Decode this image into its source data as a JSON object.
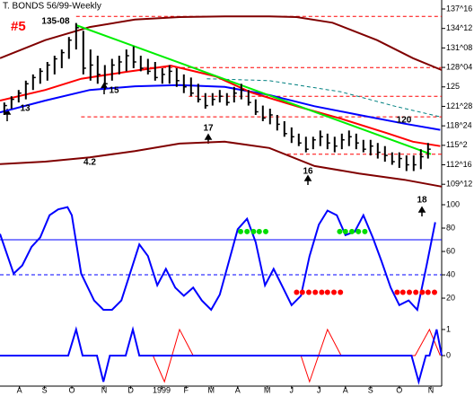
{
  "chart_data": [
    {
      "type": "hlc",
      "title": "T. BONDS 56/99-Weekly",
      "badge": "#5",
      "annotations": [
        "135-08",
        "13",
        "15",
        "17",
        "16",
        "18",
        "120",
        "4.2"
      ],
      "xlim": [
        -0.6,
        60.9
      ],
      "ylim": [
        107.82,
        138.94
      ],
      "yticks": [
        {
          "value": 137.5,
          "label": "137^16"
        },
        {
          "value": 134.375,
          "label": "134^12"
        },
        {
          "value": 131.25,
          "label": "131^08"
        },
        {
          "value": 128.125,
          "label": "128^04"
        },
        125,
        {
          "value": 121.875,
          "label": "121^28"
        },
        {
          "value": 118.75,
          "label": "118^24"
        },
        {
          "value": 115.625,
          "label": "115^2"
        },
        {
          "value": 112.5,
          "label": "112^16"
        },
        {
          "value": 109.375,
          "label": "109^12"
        }
      ],
      "bar_color": "#000000",
      "x": [
        0,
        1,
        2,
        3,
        4,
        5,
        6,
        7,
        8,
        9,
        10,
        11,
        12,
        13,
        14,
        15,
        16,
        17,
        18,
        19,
        20,
        21,
        22,
        23,
        24,
        25,
        26,
        27,
        28,
        29,
        30,
        31,
        32,
        33,
        34,
        35,
        36,
        37,
        38,
        39,
        40,
        41,
        42,
        43,
        44,
        45,
        46,
        47,
        48,
        49,
        50,
        51,
        52,
        53,
        54,
        55,
        56,
        57,
        58,
        59
      ],
      "high": [
        122.5,
        123.5,
        124.5,
        126,
        127,
        128,
        129,
        130,
        131,
        133,
        135.25,
        134,
        131,
        130,
        128.5,
        129.5,
        130,
        131,
        131.5,
        130,
        129.5,
        129,
        128,
        128.5,
        128,
        127,
        126.5,
        125.5,
        124,
        124,
        124.5,
        124,
        125,
        125.5,
        124.5,
        123,
        122,
        121.5,
        120.5,
        119.5,
        118.5,
        117.5,
        117,
        117,
        118,
        117.5,
        117,
        117.5,
        118,
        117.5,
        116.5,
        116.5,
        116,
        115.5,
        114.5,
        114.5,
        114,
        114,
        115,
        116
      ],
      "low": [
        120.5,
        121.5,
        122.5,
        123,
        124.5,
        125.5,
        126,
        127,
        128,
        129.5,
        131,
        127,
        126,
        125.5,
        124.5,
        126,
        127,
        127.5,
        128,
        127.5,
        127,
        126,
        125.5,
        125.5,
        125,
        124,
        123.5,
        122.5,
        121.5,
        122,
        122.5,
        122,
        122.5,
        123,
        122,
        120.5,
        119.5,
        119,
        118,
        117,
        116,
        115.5,
        114.5,
        115,
        115.5,
        115,
        114.5,
        115,
        115.5,
        115,
        114.5,
        114,
        113.5,
        113,
        112.5,
        112,
        111.5,
        111.5,
        111.8,
        113.5
      ],
      "close": [
        122,
        123,
        124,
        125.5,
        126.5,
        127.5,
        128.5,
        129.5,
        130.5,
        132.5,
        134.5,
        128,
        128.5,
        127,
        125.5,
        128.5,
        129,
        130,
        129,
        128,
        127.5,
        126.5,
        127,
        127.5,
        126,
        125,
        124,
        123,
        122,
        123,
        123.5,
        122.5,
        124,
        124.5,
        122.5,
        121,
        120,
        120.5,
        119,
        117.5,
        117,
        116,
        115,
        116.5,
        117,
        116,
        115.5,
        116.5,
        117,
        116,
        115,
        115.5,
        114.5,
        114,
        113,
        113.5,
        112.5,
        112.5,
        113.8,
        115
      ],
      "series": [
        {
          "color": "#ff0000",
          "dash": true,
          "x": [
            10,
            60.9
          ],
          "values": [
            136.3,
            136.3
          ]
        },
        {
          "color": "#ff0000",
          "dash": true,
          "x": [
            19.4,
            60.9
          ],
          "values": [
            128.1,
            128.1
          ]
        },
        {
          "color": "#ff0000",
          "dash": true,
          "x": [
            25.7,
            60.9
          ],
          "values": [
            123.5,
            123.5
          ]
        },
        {
          "color": "#ff0000",
          "dash": true,
          "x": [
            10.7,
            60.9
          ],
          "values": [
            120.2,
            120.2
          ]
        },
        {
          "color": "#ff0000",
          "dash": true,
          "x": [
            39.4,
            60.9
          ],
          "values": [
            114.2,
            114.2
          ]
        },
        {
          "color": "#008080",
          "dash": true,
          "x": [
            28.2,
            36.9,
            46.9,
            54.4,
            60.7
          ],
          "values": [
            126.3,
            126,
            124.2,
            121.9,
            120.2
          ]
        },
        {
          "color": "#800000",
          "thick": true,
          "x": [
            -0.6,
            5.7,
            11.9,
            18.2,
            24.4,
            30.7,
            36.9,
            40.7,
            45.7,
            51.9,
            56.9,
            60.9
          ],
          "values": [
            129.6,
            132.5,
            134.6,
            135.8,
            136.2,
            136.3,
            136.3,
            136.2,
            135.3,
            132.5,
            129.6,
            127.7
          ]
        },
        {
          "color": "#800000",
          "thick": true,
          "x": [
            -0.6,
            5.7,
            11.9,
            18.2,
            24.4,
            30.7,
            36.9,
            43.2,
            49.4,
            55.7,
            60.9
          ],
          "values": [
            112.6,
            113,
            113.7,
            114.7,
            115.9,
            116.2,
            115.2,
            112.3,
            111.1,
            110.1,
            109.0
          ]
        },
        {
          "color": "#0000ff",
          "thick": true,
          "x": [
            -0.6,
            5.7,
            11.9,
            18.2,
            24.4,
            30.7,
            36.9,
            43.2,
            49.4,
            55.7,
            60.7
          ],
          "values": [
            120.9,
            122.8,
            124.5,
            125.1,
            125.3,
            125,
            123.7,
            121.9,
            120.5,
            119.1,
            118.1
          ]
        },
        {
          "color": "#ff0000",
          "thick": true,
          "x": [
            -0.6,
            5.7,
            10.7,
            16.9,
            23.2,
            29.4,
            34.4,
            40.7,
            46.9,
            53.2,
            56.9,
            60.7
          ],
          "values": [
            122.8,
            124.5,
            126.3,
            127.4,
            128.4,
            126.7,
            124.1,
            121.9,
            119.9,
            117.6,
            116.2,
            115.5
          ]
        },
        {
          "color": "#00ee00",
          "thick": true,
          "x": [
            10,
            59.4
          ],
          "values": [
            134.9,
            114.2
          ]
        }
      ]
    },
    {
      "type": "line",
      "xlim": [
        -0.6,
        60.9
      ],
      "ylim": [
        -1.5,
        107.7
      ],
      "yticks": [
        100,
        80,
        60,
        40,
        20
      ],
      "series": [
        {
          "color": "#0000ff",
          "x": [
            -0.6,
            60.9
          ],
          "values": [
            70,
            70
          ]
        },
        {
          "color": "#0000ff",
          "dash": true,
          "x": [
            -0.6,
            60.9
          ],
          "values": [
            40,
            40
          ]
        },
        {
          "color": "#0000ff",
          "thick": true,
          "x": [
            -0.6,
            1.3,
            2.5,
            3.8,
            5,
            6.3,
            7.5,
            8.8,
            9.4,
            10.7,
            12.5,
            13.8,
            15,
            16.3,
            17.5,
            18.8,
            20,
            21.3,
            22.5,
            23.8,
            25,
            26.3,
            27.5,
            28.8,
            30,
            31.3,
            32.5,
            33.8,
            35,
            36.3,
            37.5,
            38.8,
            40,
            41.3,
            42.5,
            43.8,
            45,
            46.3,
            47.5,
            48.8,
            50,
            51.3,
            52.5,
            53.8,
            55,
            56.3,
            57.5,
            58.8,
            60
          ],
          "values": [
            75,
            41,
            48,
            64,
            72,
            91,
            96,
            98,
            91,
            41,
            18,
            10,
            10,
            18,
            41,
            66,
            56,
            31,
            45,
            29,
            22,
            29,
            18,
            10,
            23,
            52,
            79,
            88,
            68,
            31,
            45,
            29,
            14,
            22,
            56,
            83,
            95,
            91,
            74,
            77,
            91,
            72,
            52,
            29,
            14,
            18,
            10,
            48,
            85
          ]
        },
        {
          "type": "scatter",
          "color": "#00dd00",
          "x": [
            32.9,
            33.8,
            34.7,
            35.5,
            36.4,
            46.7,
            47.5,
            48.4,
            49.3,
            50.2
          ],
          "values": [
            77,
            77,
            77,
            77,
            77,
            77,
            77,
            77,
            77,
            77
          ]
        },
        {
          "type": "scatter",
          "color": "#ff0000",
          "x": [
            40.7,
            41.5,
            42.4,
            43.3,
            44.2,
            45,
            45.9,
            46.8,
            54.7,
            55.5,
            56.4,
            57.3,
            58.2,
            59,
            59.9
          ],
          "values": [
            25,
            25,
            25,
            25,
            25,
            25,
            25,
            25,
            25,
            25,
            25,
            25,
            25,
            25,
            25
          ]
        }
      ]
    },
    {
      "type": "line",
      "xlim": [
        -0.6,
        60.9
      ],
      "ylim": [
        -1.17,
        1.17
      ],
      "yticks": [
        1,
        0
      ],
      "xticks": [
        {
          "value": 2.1,
          "label": "A"
        },
        {
          "value": 5.6,
          "label": "S"
        },
        {
          "value": 9.4,
          "label": "O"
        },
        {
          "value": 13.9,
          "label": "N"
        },
        {
          "value": 17.6,
          "label": "D"
        },
        {
          "value": 21.9,
          "label": "1999"
        },
        {
          "value": 25.3,
          "label": "F"
        },
        {
          "value": 28.8,
          "label": "M"
        },
        {
          "value": 32.5,
          "label": "A"
        },
        {
          "value": 36.6,
          "label": "M"
        },
        {
          "value": 40,
          "label": "J"
        },
        {
          "value": 43.8,
          "label": "J"
        },
        {
          "value": 47.5,
          "label": "A"
        },
        {
          "value": 51,
          "label": "S"
        },
        {
          "value": 55,
          "label": "O"
        },
        {
          "value": 59.4,
          "label": "N"
        }
      ],
      "series": [
        {
          "color": "#ff0000",
          "x": [
            20.7,
            22.3,
            24.4,
            26.3,
            41.3,
            42.5,
            45,
            46.9,
            57.2,
            59.2,
            60.7
          ],
          "values": [
            0,
            -1,
            1,
            0,
            0,
            -1,
            1,
            0,
            0,
            1,
            0
          ]
        },
        {
          "color": "#0000ff",
          "thick": true,
          "x": [
            -0.6,
            8.9,
            10,
            10.9,
            12.9,
            13.8,
            14.7,
            16.9,
            17.9,
            18.8,
            56.7,
            57.7,
            58.7,
            59.2,
            60.2,
            60.9
          ],
          "values": [
            0,
            0,
            1,
            0,
            0,
            -1,
            0,
            0,
            1,
            0,
            0,
            -1,
            0,
            0,
            1,
            0
          ]
        }
      ]
    }
  ]
}
